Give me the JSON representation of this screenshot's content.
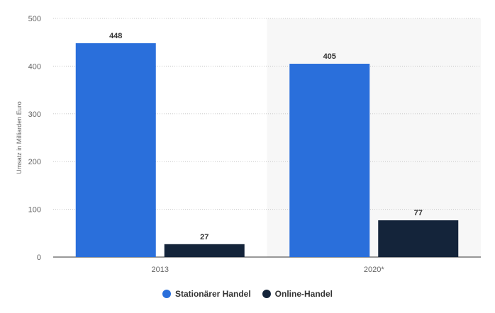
{
  "chart_data": {
    "type": "bar",
    "categories": [
      "2013",
      "2020*"
    ],
    "series": [
      {
        "name": "Stationärer Handel",
        "values": [
          448,
          405
        ],
        "color": "#2a6fdb"
      },
      {
        "name": "Online-Handel",
        "values": [
          27,
          77
        ],
        "color": "#14243a"
      }
    ],
    "ylabel": "Umsatz in Milliarden Euro",
    "ylim": [
      0,
      500
    ],
    "yticks": [
      0,
      100,
      200,
      300,
      400,
      500
    ],
    "grid": true,
    "legend_position": "bottom",
    "highlighted_category": "2020*",
    "highlight_color": "#f7f7f7"
  },
  "legend": {
    "items": [
      {
        "label": "Stationärer Handel",
        "color": "#2a6fdb"
      },
      {
        "label": "Online-Handel",
        "color": "#14243a"
      }
    ]
  }
}
